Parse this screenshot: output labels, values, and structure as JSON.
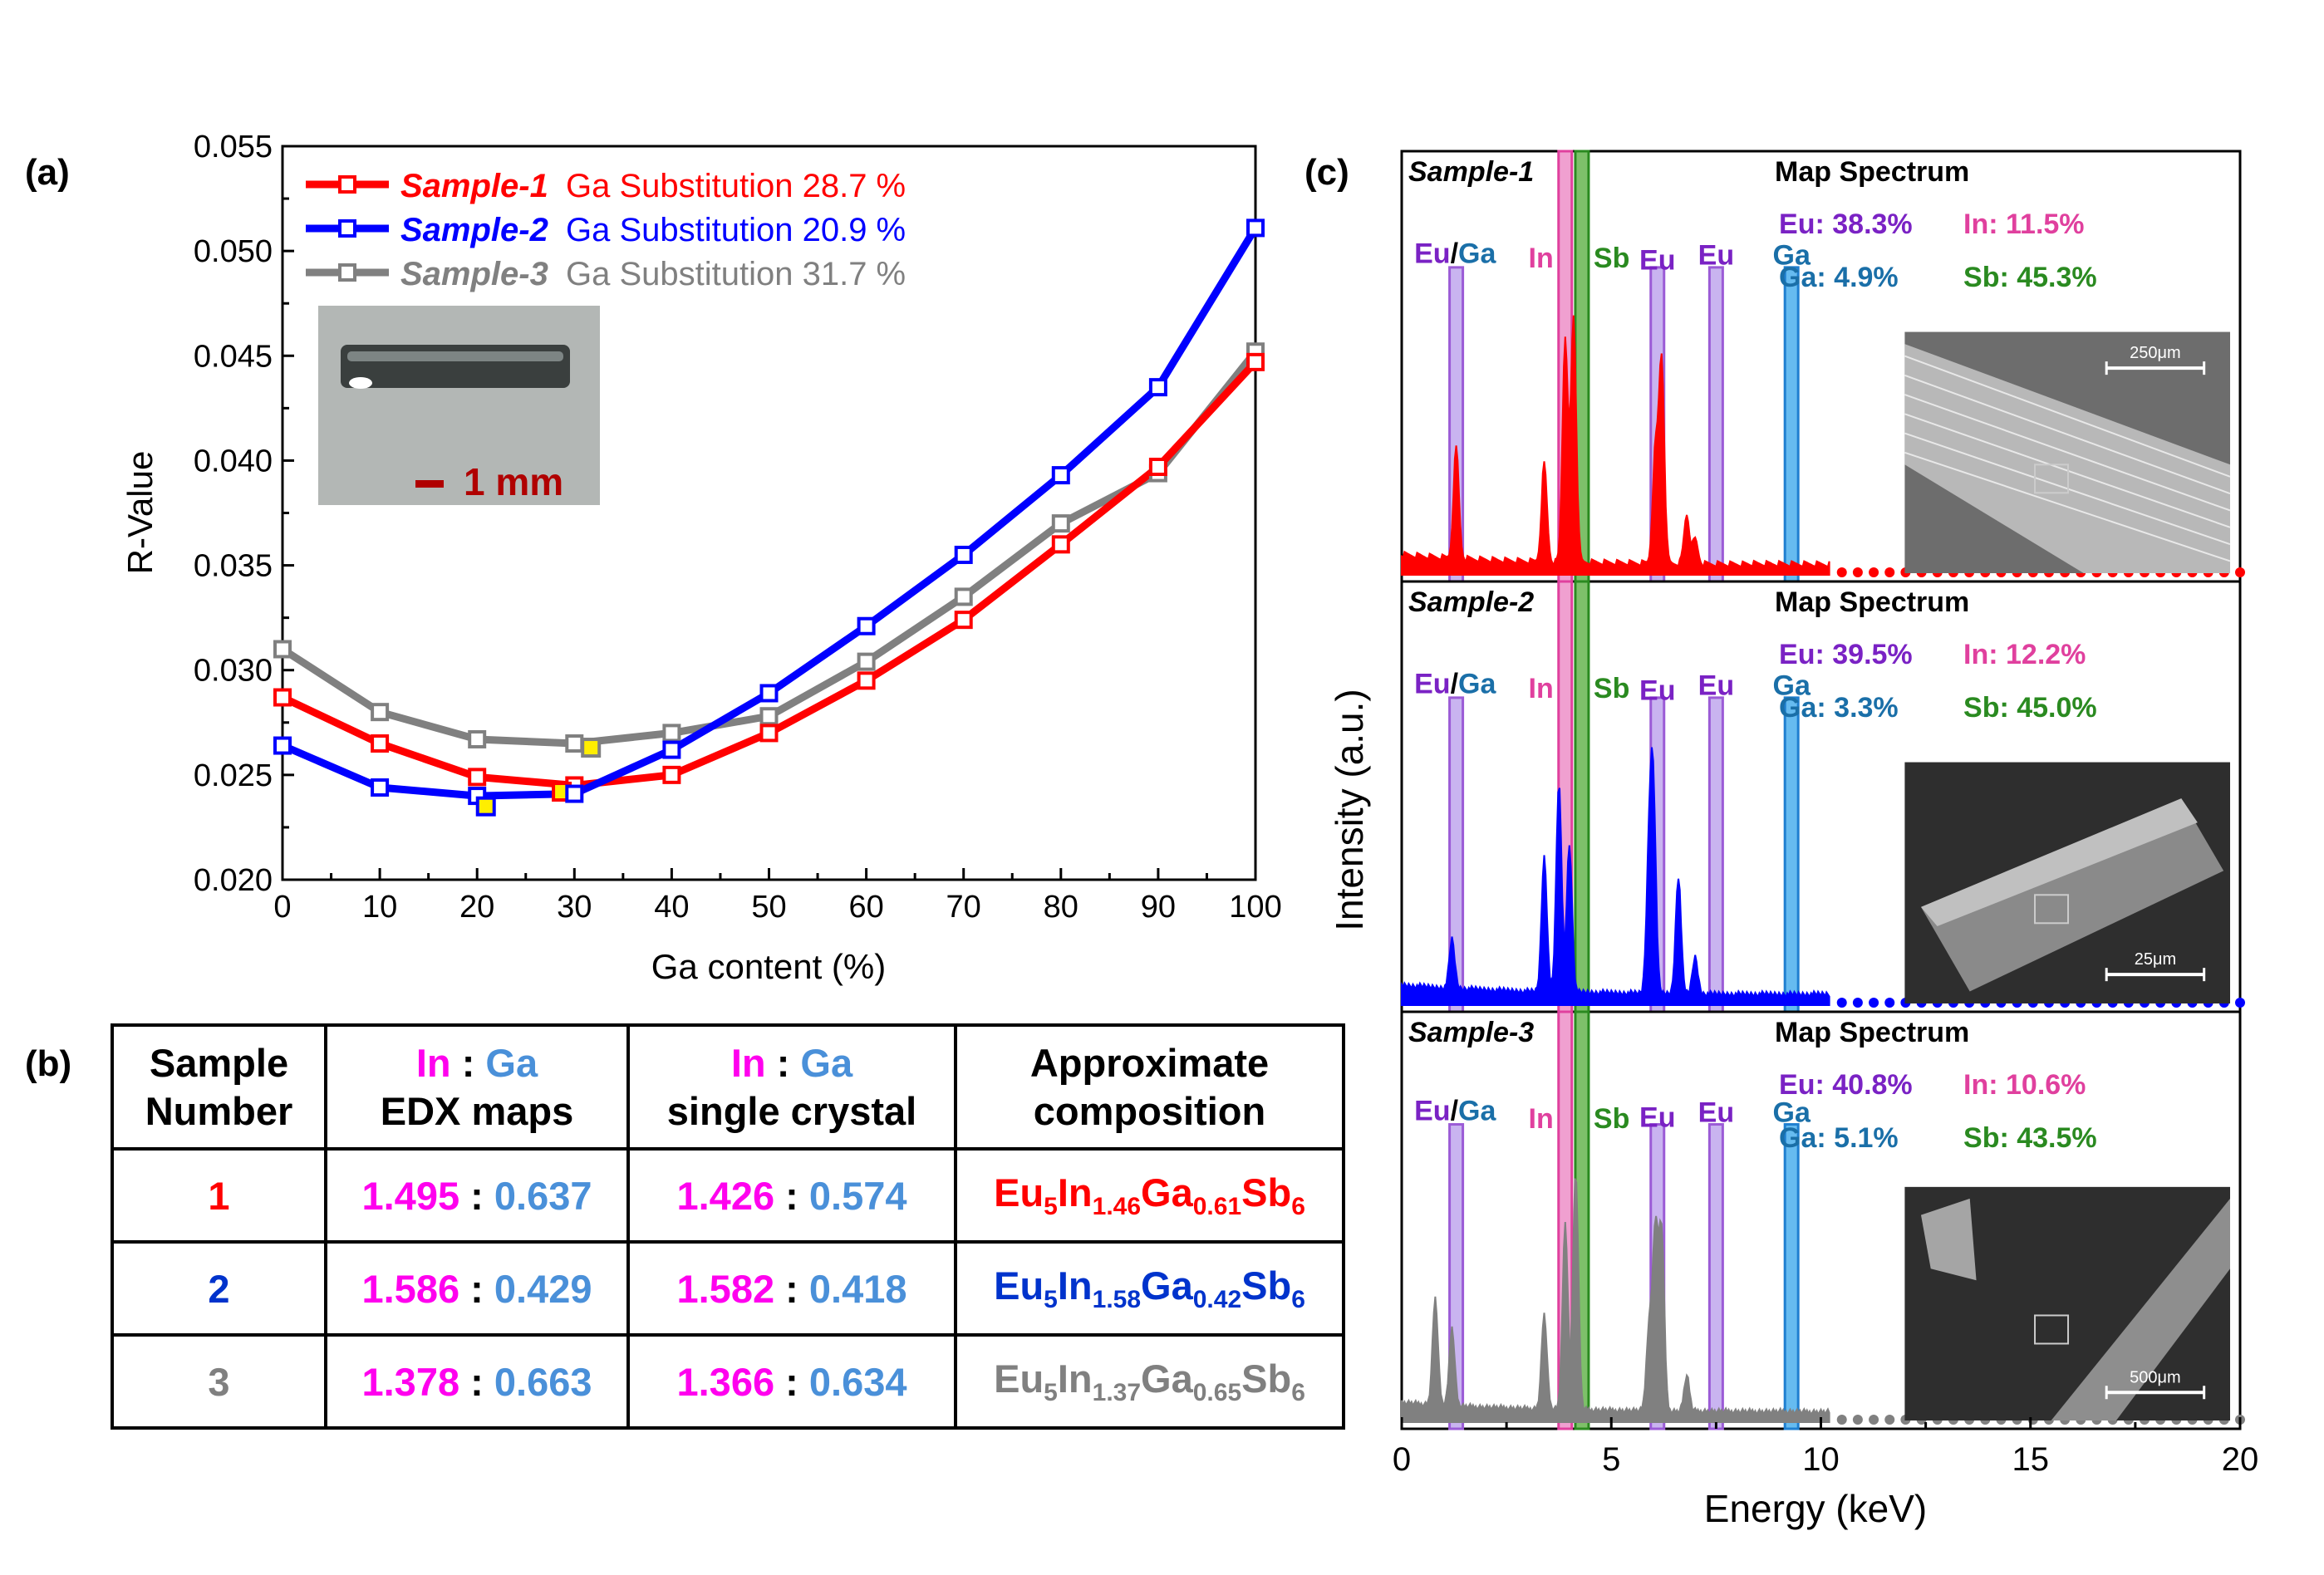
{
  "panel_labels": [
    "(a)",
    "(b)",
    "(c)"
  ],
  "colors": {
    "s1": "#ff0000",
    "s2": "#0000ff",
    "s3": "#808080",
    "eu": "#9b5bd6",
    "in": "#e0409e",
    "ga": "#1f7fd0",
    "sb": "#2a8a20",
    "in_text": "#ff00ff",
    "ga_text": "#4a90d9"
  },
  "chart_data": [
    {
      "panel": "(a)",
      "type": "line",
      "xlabel": "Ga content (%)",
      "ylabel": "R-Value",
      "xlim": [
        0,
        100
      ],
      "ylim": [
        0.02,
        0.055
      ],
      "xticks": [
        "0",
        "10",
        "20",
        "30",
        "40",
        "50",
        "60",
        "70",
        "80",
        "90",
        "100"
      ],
      "yticks": [
        "0.020",
        "0.025",
        "0.030",
        "0.035",
        "0.040",
        "0.045",
        "0.050",
        "0.055"
      ],
      "x": [
        0,
        10,
        20,
        30,
        40,
        50,
        60,
        70,
        80,
        90,
        100
      ],
      "series": [
        {
          "name": "Sample-1",
          "legend_suffix": "Ga Substitution 28.7 %",
          "color": "#ff0000",
          "values": [
            0.0287,
            0.0265,
            0.0249,
            0.0245,
            0.025,
            0.027,
            0.0295,
            0.0324,
            0.036,
            0.0397,
            0.0447
          ],
          "marker": {
            "x": 28.7,
            "y": 0.0242
          }
        },
        {
          "name": "Sample-2",
          "legend_suffix": "Ga Substitution 20.9 %",
          "color": "#0000ff",
          "values": [
            0.0264,
            0.0244,
            0.024,
            0.0241,
            0.0262,
            0.0289,
            0.0321,
            0.0355,
            0.0393,
            0.0435,
            0.0511
          ],
          "marker": {
            "x": 20.9,
            "y": 0.0235
          }
        },
        {
          "name": "Sample-3",
          "legend_suffix": "Ga Substitution 31.7 %",
          "color": "#808080",
          "values": [
            0.031,
            0.028,
            0.0267,
            0.0265,
            0.027,
            0.0278,
            0.0304,
            0.0335,
            0.037,
            0.0394,
            0.0452
          ],
          "marker": {
            "x": 31.7,
            "y": 0.0263
          }
        }
      ],
      "inset": {
        "scale_label": "1 mm"
      }
    },
    {
      "panel": "(c)",
      "type": "line",
      "xlabel": "Energy (keV)",
      "ylabel": "Intensity (a.u.)",
      "xlim": [
        0,
        20
      ],
      "xticks": [
        "0",
        "5",
        "10",
        "15",
        "20"
      ],
      "line_labels": {
        "eu_ga": [
          "Eu",
          "/",
          "Ga"
        ],
        "eu": "Eu",
        "in": "In",
        "sb": "Sb",
        "ga": "Ga"
      },
      "line_positions_keV": {
        "eu_ga": 1.3,
        "eu_1": 6.1,
        "eu_2": 7.5,
        "ga": 9.3,
        "in": 3.9,
        "sb": 4.3
      },
      "subpanels": [
        {
          "name": "Sample-1",
          "title": "Map Spectrum",
          "color": "#ff0000",
          "eu": "Eu: 38.3%",
          "in": "In: 11.5%",
          "ga": "Ga: 4.9%",
          "sb": "Sb: 45.3%",
          "scale": "250μm",
          "peaks": [
            [
              1.3,
              0.45
            ],
            [
              3.4,
              0.4
            ],
            [
              3.9,
              0.92
            ],
            [
              4.1,
              1.0
            ],
            [
              6.05,
              0.45
            ],
            [
              6.2,
              0.83
            ],
            [
              6.8,
              0.2
            ],
            [
              7.0,
              0.1
            ]
          ]
        },
        {
          "name": "Sample-2",
          "title": "Map Spectrum",
          "color": "#0000ff",
          "eu": "Eu: 39.5%",
          "in": "In: 12.2%",
          "ga": "Ga: 3.3%",
          "sb": "Sb: 45.0%",
          "scale": "25μm",
          "peaks": [
            [
              1.2,
              0.2
            ],
            [
              3.4,
              0.55
            ],
            [
              3.75,
              0.85
            ],
            [
              4.0,
              0.6
            ],
            [
              5.9,
              0.52
            ],
            [
              6.0,
              0.8
            ],
            [
              6.6,
              0.48
            ],
            [
              7.0,
              0.15
            ]
          ]
        },
        {
          "name": "Sample-3",
          "title": "Map Spectrum",
          "color": "#808080",
          "eu": "Eu: 40.8%",
          "in": "In: 10.6%",
          "ga": "Ga: 5.1%",
          "sb": "Sb: 43.5%",
          "scale": "500μm",
          "peaks": [
            [
              0.8,
              0.45
            ],
            [
              1.2,
              0.33
            ],
            [
              3.4,
              0.4
            ],
            [
              3.9,
              0.78
            ],
            [
              4.15,
              1.0
            ],
            [
              5.9,
              0.35
            ],
            [
              6.05,
              0.75
            ],
            [
              6.2,
              0.75
            ],
            [
              6.8,
              0.15
            ]
          ]
        }
      ]
    }
  ],
  "table": {
    "headers": {
      "sample_number": "Sample Number",
      "edx_ratio": [
        "In",
        ":",
        "Ga"
      ],
      "edx_label": "EDX maps",
      "single_ratio": [
        "In",
        ":",
        "Ga"
      ],
      "single_label": "single crystal",
      "composition": "Approximate composition"
    },
    "rows": [
      {
        "n": "1",
        "color": "#ff0000",
        "edx_in": "1.495",
        "edx_ga": "0.637",
        "sc_in": "1.426",
        "sc_ga": "0.574",
        "comp": [
          "Eu",
          "5",
          "In",
          "1.46",
          "Ga",
          "0.61",
          "Sb",
          "6"
        ]
      },
      {
        "n": "2",
        "color": "#0033cc",
        "edx_in": "1.586",
        "edx_ga": "0.429",
        "sc_in": "1.582",
        "sc_ga": "0.418",
        "comp": [
          "Eu",
          "5",
          "In",
          "1.58",
          "Ga",
          "0.42",
          "Sb",
          "6"
        ]
      },
      {
        "n": "3",
        "color": "#808080",
        "edx_in": "1.378",
        "edx_ga": "0.663",
        "sc_in": "1.366",
        "sc_ga": "0.634",
        "comp": [
          "Eu",
          "5",
          "In",
          "1.37",
          "Ga",
          "0.65",
          "Sb",
          "6"
        ]
      }
    ]
  }
}
